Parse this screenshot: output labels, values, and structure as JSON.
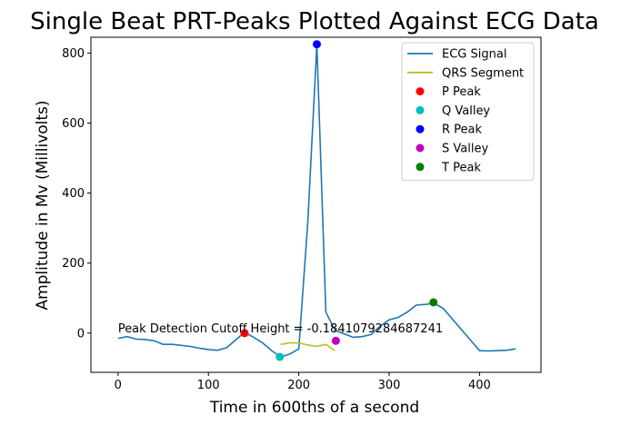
{
  "chart_data": {
    "type": "line",
    "title": "Single Beat PRT-Peaks Plotted Against ECG Data",
    "xlabel": "Time in 600ths of a second",
    "ylabel": "Amplitude in Mv (Millivolts)",
    "xlim": [
      -30,
      468
    ],
    "ylim": [
      -112,
      845
    ],
    "x_ticks": [
      0,
      100,
      200,
      300,
      400
    ],
    "y_ticks": [
      0,
      200,
      400,
      600,
      800
    ],
    "grid": false,
    "legend_placement": "top-right",
    "series": [
      {
        "name": "ECG Signal",
        "kind": "line",
        "color": "#1f77b4",
        "x": [
          0,
          10,
          20,
          30,
          40,
          50,
          60,
          70,
          80,
          90,
          100,
          110,
          120,
          130,
          140,
          150,
          160,
          170,
          180,
          190,
          200,
          210,
          220,
          230,
          240,
          250,
          260,
          270,
          280,
          290,
          300,
          310,
          320,
          330,
          340,
          350,
          360,
          370,
          380,
          390,
          400,
          410,
          420,
          430,
          440
        ],
        "y": [
          -15,
          -10,
          -17,
          -18,
          -22,
          -32,
          -32,
          -35,
          -38,
          -43,
          -47,
          -49,
          -42,
          -20,
          2,
          -12,
          -28,
          -50,
          -68,
          -60,
          -45,
          320,
          825,
          60,
          8,
          -2,
          -12,
          -10,
          -4,
          20,
          38,
          45,
          60,
          80,
          82,
          85,
          70,
          40,
          10,
          -20,
          -50,
          -51,
          -50,
          -49,
          -45
        ]
      },
      {
        "name": "QRS Segment",
        "kind": "line",
        "color": "#bcbd22",
        "x": [
          180,
          190,
          200,
          210,
          220,
          230,
          240
        ],
        "y": [
          -32,
          -28,
          -28,
          -34,
          -38,
          -32,
          -50
        ]
      },
      {
        "name": "P Peak",
        "kind": "point",
        "color": "#ff0000",
        "x": [
          140
        ],
        "y": [
          0
        ]
      },
      {
        "name": "Q Valley",
        "kind": "point",
        "color": "#00bfbf",
        "x": [
          179
        ],
        "y": [
          -68
        ]
      },
      {
        "name": "R Peak",
        "kind": "point",
        "color": "#0000ff",
        "x": [
          220
        ],
        "y": [
          825
        ]
      },
      {
        "name": "S Valley",
        "kind": "point",
        "color": "#bf00bf",
        "x": [
          241
        ],
        "y": [
          -22
        ]
      },
      {
        "name": "T Peak",
        "kind": "point",
        "color": "#008000",
        "x": [
          349
        ],
        "y": [
          88
        ]
      }
    ],
    "annotation": {
      "text": "Peak Detection Cutoff Height = -0.1841079284687241",
      "x": 0,
      "y": 0
    }
  }
}
